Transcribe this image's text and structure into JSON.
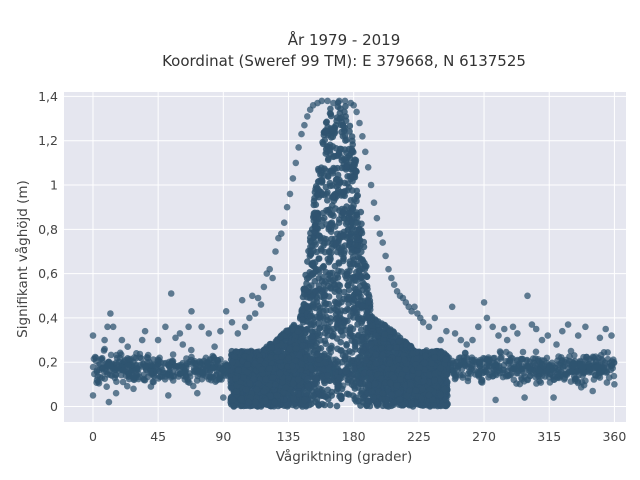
{
  "chart_data": {
    "type": "scatter",
    "title_line1": "År 1979 - 2019",
    "title_line2": "Koordinat (Sweref 99 TM): E 379668, N 6137525",
    "xlabel": "Vågriktning (grader)",
    "ylabel": "Signifikant våghöjd (m)",
    "xlim": [
      -20,
      368
    ],
    "ylim": [
      -0.07,
      1.42
    ],
    "xticks": [
      0,
      45,
      90,
      135,
      180,
      225,
      270,
      315,
      360
    ],
    "xtick_labels": [
      "0",
      "45",
      "90",
      "135",
      "180",
      "225",
      "270",
      "315",
      "360"
    ],
    "yticks": [
      0,
      0.2,
      0.4,
      0.6,
      0.8,
      1,
      1.2,
      1.4
    ],
    "ytick_labels": [
      "0",
      "0,2",
      "0,4",
      "0,6",
      "0,8",
      "1",
      "1,2",
      "1,4"
    ],
    "grid": true,
    "marker_color": "#2f5470",
    "background_color": "#e5e6ef",
    "grid_color": "#ffffff",
    "x_range": [
      0,
      360
    ],
    "approx_max_y": 1.38,
    "peak_direction": 170,
    "points": [
      [
        0,
        0.05
      ],
      [
        0,
        0.32
      ],
      [
        2,
        0.22
      ],
      [
        5,
        0.19
      ],
      [
        8,
        0.3
      ],
      [
        10,
        0.36
      ],
      [
        11,
        0.02
      ],
      [
        12,
        0.42
      ],
      [
        14,
        0.36
      ],
      [
        16,
        0.06
      ],
      [
        20,
        0.3
      ],
      [
        24,
        0.27
      ],
      [
        28,
        0.08
      ],
      [
        30,
        0.24
      ],
      [
        34,
        0.3
      ],
      [
        36,
        0.34
      ],
      [
        40,
        0.09
      ],
      [
        45,
        0.3
      ],
      [
        46,
        0.22
      ],
      [
        50,
        0.36
      ],
      [
        52,
        0.05
      ],
      [
        54,
        0.51
      ],
      [
        57,
        0.31
      ],
      [
        60,
        0.33
      ],
      [
        62,
        0.28
      ],
      [
        66,
        0.36
      ],
      [
        68,
        0.43
      ],
      [
        72,
        0.06
      ],
      [
        75,
        0.36
      ],
      [
        78,
        0.22
      ],
      [
        80,
        0.33
      ],
      [
        84,
        0.27
      ],
      [
        88,
        0.34
      ],
      [
        90,
        0.04
      ],
      [
        92,
        0.43
      ],
      [
        96,
        0.38
      ],
      [
        100,
        0.33
      ],
      [
        103,
        0.48
      ],
      [
        105,
        0.36
      ],
      [
        108,
        0.4
      ],
      [
        110,
        0.5
      ],
      [
        112,
        0.42
      ],
      [
        114,
        0.49
      ],
      [
        116,
        0.46
      ],
      [
        118,
        0.54
      ],
      [
        120,
        0.6
      ],
      [
        122,
        0.62
      ],
      [
        124,
        0.58
      ],
      [
        126,
        0.7
      ],
      [
        128,
        0.76
      ],
      [
        130,
        0.78
      ],
      [
        132,
        0.83
      ],
      [
        134,
        0.9
      ],
      [
        136,
        0.96
      ],
      [
        138,
        1.03
      ],
      [
        140,
        1.1
      ],
      [
        142,
        1.17
      ],
      [
        144,
        1.23
      ],
      [
        146,
        1.27
      ],
      [
        148,
        1.31
      ],
      [
        150,
        1.34
      ],
      [
        152,
        1.36
      ],
      [
        155,
        1.37
      ],
      [
        158,
        1.38
      ],
      [
        162,
        1.38
      ],
      [
        166,
        1.37
      ],
      [
        170,
        1.38
      ],
      [
        174,
        1.38
      ],
      [
        178,
        1.37
      ],
      [
        180,
        1.36
      ],
      [
        182,
        1.33
      ],
      [
        184,
        1.28
      ],
      [
        186,
        1.22
      ],
      [
        188,
        1.15
      ],
      [
        190,
        1.08
      ],
      [
        192,
        1.0
      ],
      [
        194,
        0.92
      ],
      [
        196,
        0.85
      ],
      [
        198,
        0.78
      ],
      [
        200,
        0.74
      ],
      [
        202,
        0.68
      ],
      [
        204,
        0.62
      ],
      [
        206,
        0.58
      ],
      [
        208,
        0.55
      ],
      [
        210,
        0.52
      ],
      [
        212,
        0.5
      ],
      [
        214,
        0.49
      ],
      [
        216,
        0.47
      ],
      [
        218,
        0.45
      ],
      [
        220,
        0.43
      ],
      [
        222,
        0.45
      ],
      [
        224,
        0.42
      ],
      [
        226,
        0.4
      ],
      [
        228,
        0.38
      ],
      [
        232,
        0.36
      ],
      [
        236,
        0.4
      ],
      [
        240,
        0.3
      ],
      [
        244,
        0.34
      ],
      [
        248,
        0.45
      ],
      [
        250,
        0.33
      ],
      [
        254,
        0.3
      ],
      [
        258,
        0.28
      ],
      [
        262,
        0.3
      ],
      [
        266,
        0.36
      ],
      [
        270,
        0.47
      ],
      [
        272,
        0.4
      ],
      [
        276,
        0.36
      ],
      [
        278,
        0.03
      ],
      [
        280,
        0.32
      ],
      [
        284,
        0.35
      ],
      [
        286,
        0.3
      ],
      [
        290,
        0.36
      ],
      [
        293,
        0.33
      ],
      [
        298,
        0.04
      ],
      [
        300,
        0.5
      ],
      [
        303,
        0.37
      ],
      [
        306,
        0.35
      ],
      [
        310,
        0.3
      ],
      [
        314,
        0.32
      ],
      [
        318,
        0.04
      ],
      [
        320,
        0.28
      ],
      [
        324,
        0.34
      ],
      [
        328,
        0.37
      ],
      [
        330,
        0.25
      ],
      [
        335,
        0.32
      ],
      [
        340,
        0.36
      ],
      [
        345,
        0.07
      ],
      [
        350,
        0.31
      ],
      [
        354,
        0.35
      ],
      [
        358,
        0.32
      ],
      [
        360,
        0.1
      ]
    ],
    "dense_band": {
      "description_free_values": true,
      "x_start": 0,
      "x_end": 360,
      "low_y": 0.05,
      "typical_y": 0.17,
      "spread_y": 0.08
    },
    "dense_core": {
      "x_start": 95,
      "x_end": 245,
      "y_low": 0.0,
      "peak_x": 170,
      "peak_y": 1.38
    }
  }
}
